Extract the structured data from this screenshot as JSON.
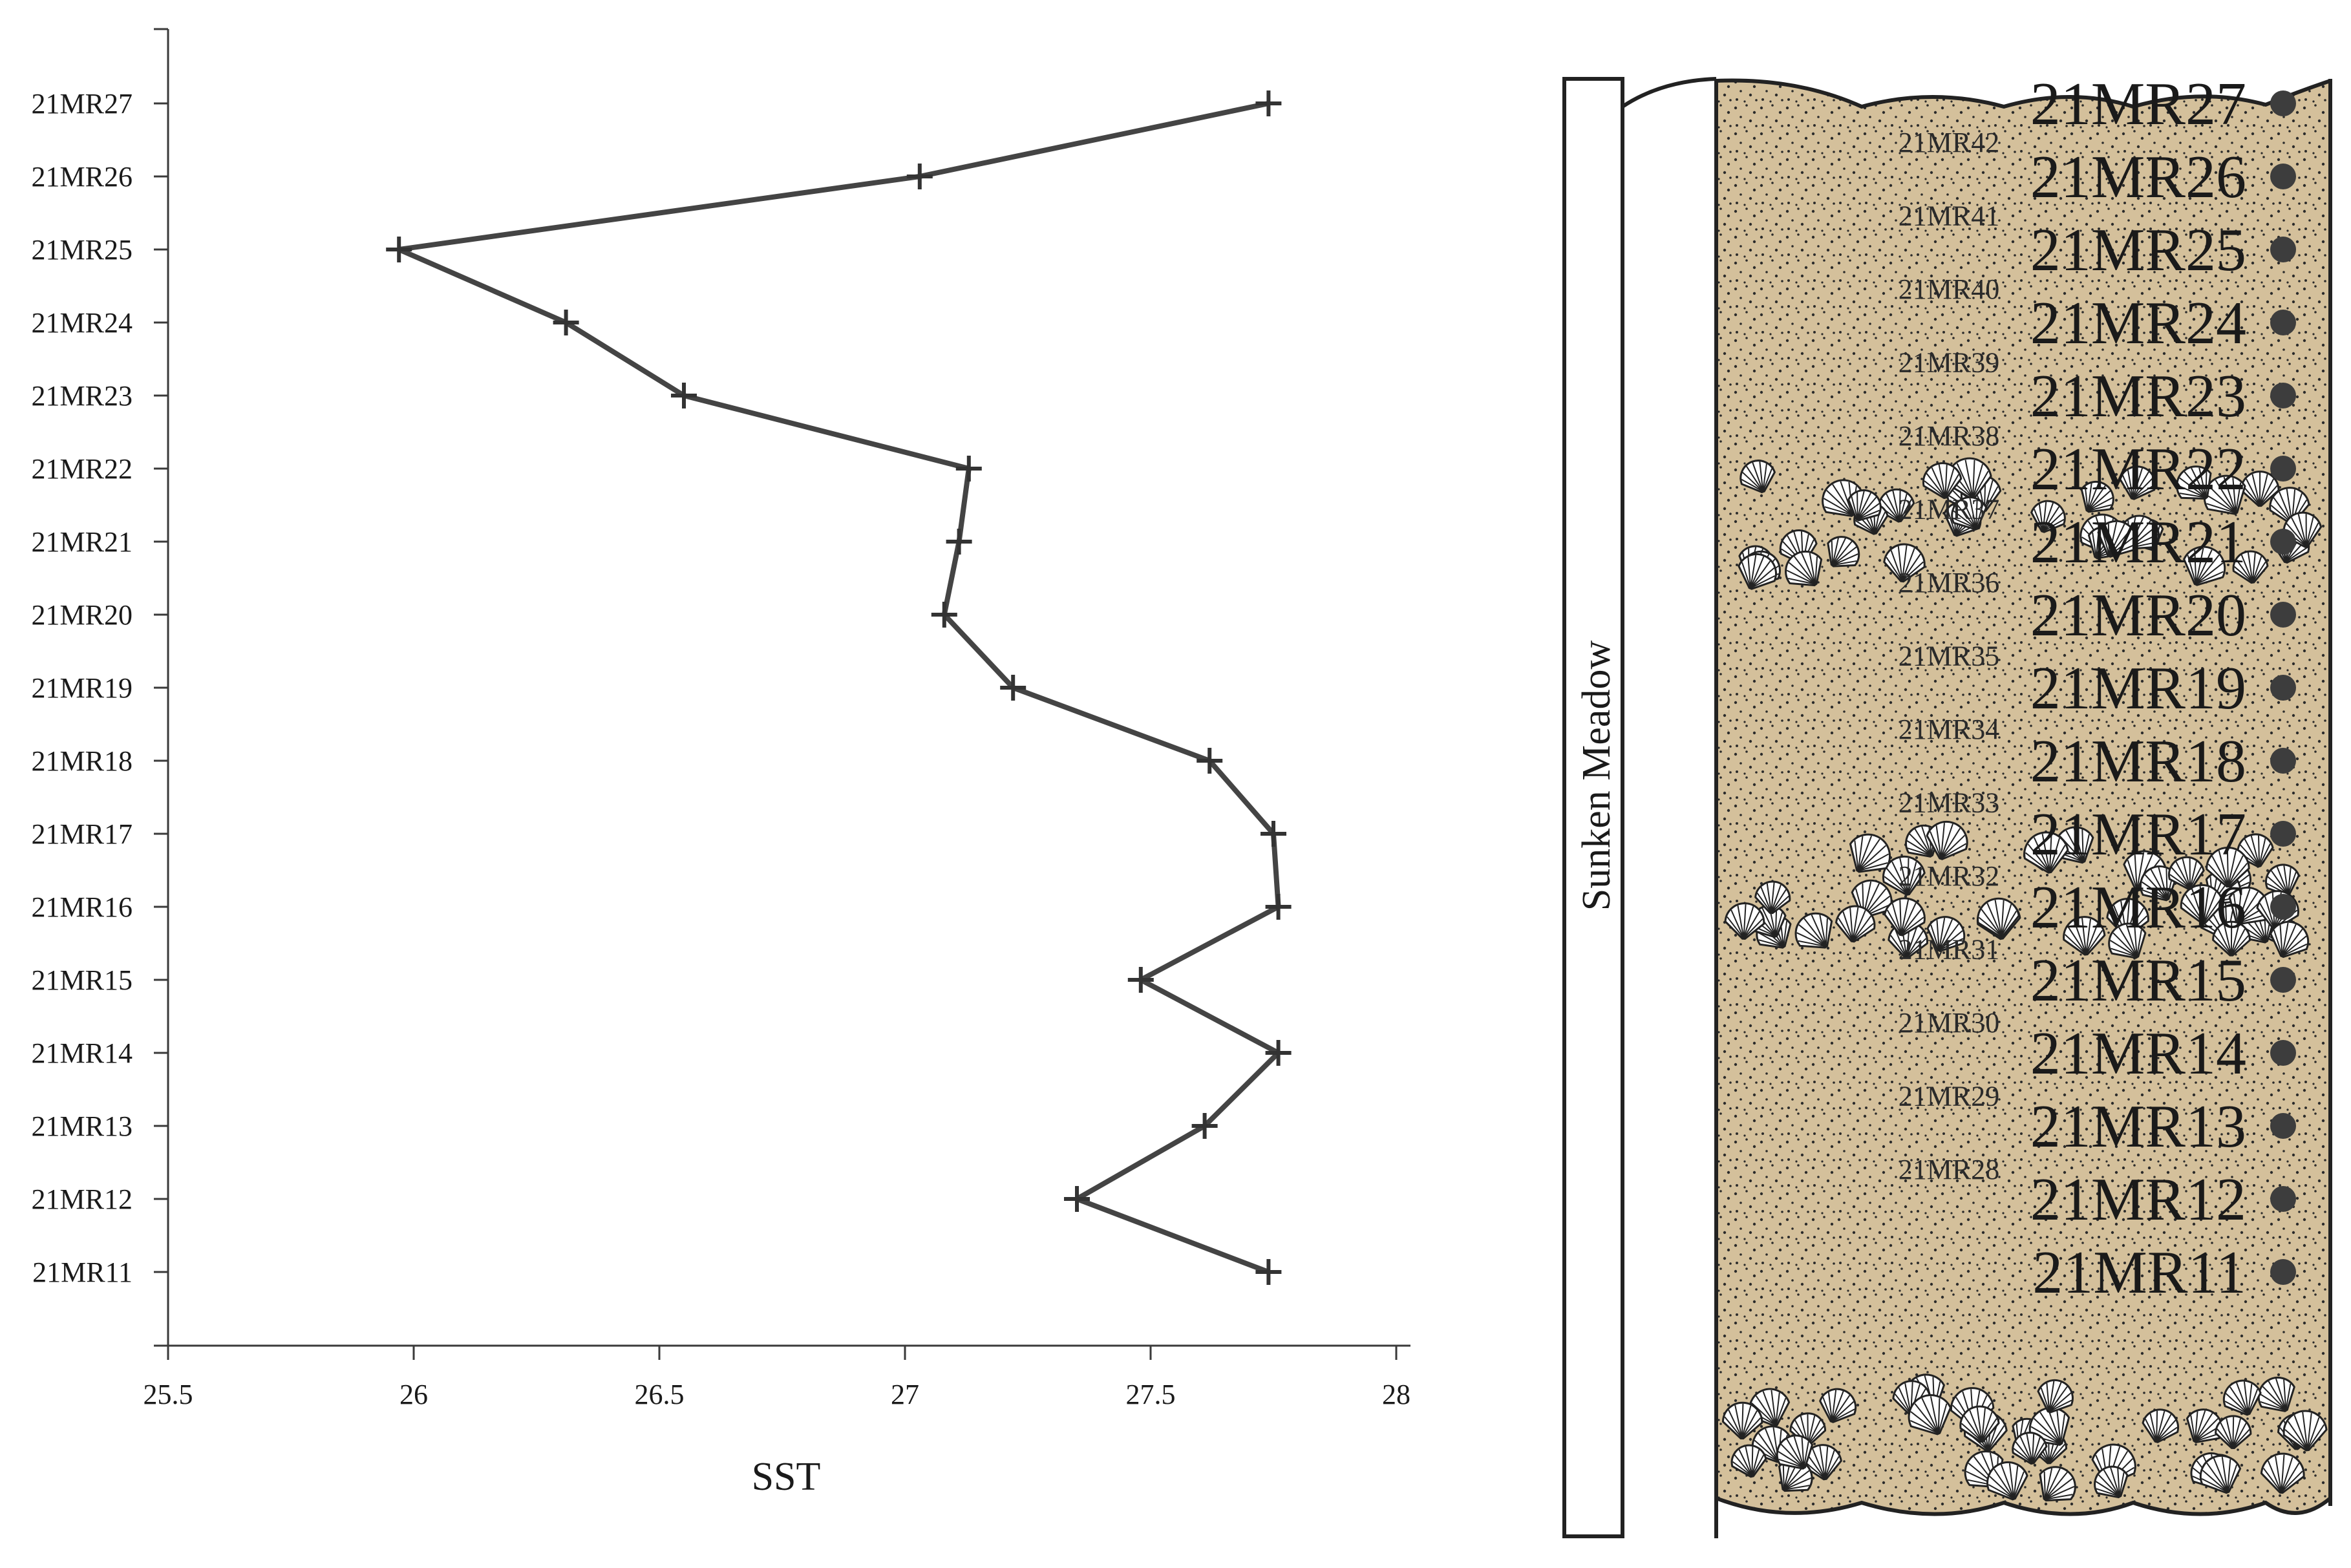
{
  "colors": {
    "line": "#444444",
    "sediment": "#d4c09b",
    "sand_dots": "#2b2b2b",
    "shell": "#ffffff",
    "sample_dot": "#3d3d3d"
  },
  "chart_data": {
    "type": "line",
    "title": "",
    "xlabel": "SST",
    "ylabel": "",
    "xlim": [
      25.5,
      28
    ],
    "x_ticks": [
      "25.5",
      "26",
      "26.5",
      "27",
      "27.5",
      "28"
    ],
    "grid": false,
    "marker": "plus",
    "categories": [
      "21MR27",
      "21MR26",
      "21MR25",
      "21MR24",
      "21MR23",
      "21MR22",
      "21MR21",
      "21MR20",
      "21MR19",
      "21MR18",
      "21MR17",
      "21MR16",
      "21MR15",
      "21MR14",
      "21MR13",
      "21MR12",
      "21MR11"
    ],
    "values": [
      27.74,
      27.03,
      25.97,
      26.31,
      26.55,
      27.13,
      27.11,
      27.08,
      27.22,
      27.62,
      27.75,
      27.76,
      27.48,
      27.76,
      27.61,
      27.35,
      27.74
    ]
  },
  "section": {
    "site_label": "Sunken Meadow",
    "big_labels": [
      "21MR27",
      "21MR26",
      "21MR25",
      "21MR24",
      "21MR23",
      "21MR22",
      "21MR21",
      "21MR20",
      "21MR19",
      "21MR18",
      "21MR17",
      "21MR16",
      "21MR15",
      "21MR14",
      "21MR13",
      "21MR12",
      "21MR11"
    ],
    "small_labels": [
      "21MR42",
      "21MR41",
      "21MR40",
      "21MR39",
      "21MR38",
      "21MR37",
      "21MR36",
      "21MR35",
      "21MR34",
      "21MR33",
      "21MR32",
      "21MR31",
      "21MR30",
      "21MR29",
      "21MR28"
    ],
    "shell_beds": [
      {
        "name": "upper"
      },
      {
        "name": "middle"
      },
      {
        "name": "lower"
      }
    ]
  }
}
